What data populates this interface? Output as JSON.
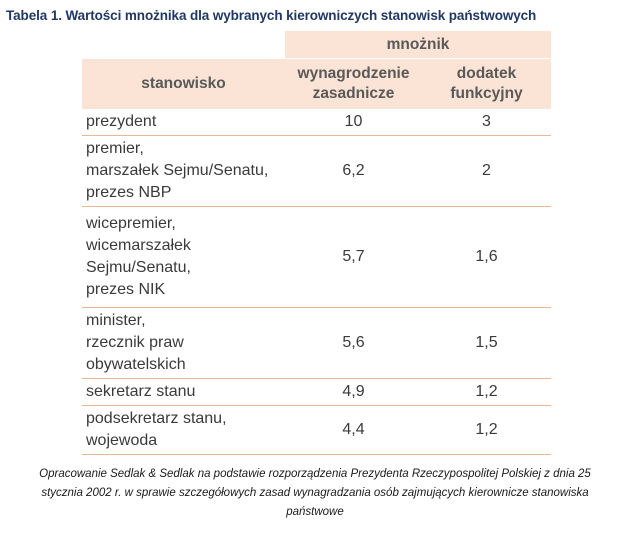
{
  "title": "Tabela 1. Wartości mnożnika dla wybranych kierowniczych stanowisk państwowych",
  "table": {
    "group_header": "mnożnik",
    "col_position": "stanowisko",
    "col_base": [
      "wynagrodzenie",
      "zasadnicze"
    ],
    "col_bonus": [
      "dodatek",
      "funkcyjny"
    ],
    "rows": [
      {
        "position": [
          "prezydent"
        ],
        "base": "10",
        "bonus": "3"
      },
      {
        "position": [
          "premier,",
          "marszałek Sejmu/Senatu,",
          "prezes NBP"
        ],
        "base": "6,2",
        "bonus": "2"
      },
      {
        "position": [
          "wicepremier,",
          "wicemarszałek",
          "Sejmu/Senatu,",
          "prezes NIK"
        ],
        "base": "5,7",
        "bonus": "1,6"
      },
      {
        "position": [
          "minister,",
          "rzecznik praw",
          "obywatelskich"
        ],
        "base": "5,6",
        "bonus": "1,5"
      },
      {
        "position": [
          "sekretarz stanu"
        ],
        "base": "4,9",
        "bonus": "1,2"
      },
      {
        "position": [
          "podsekretarz stanu,",
          "wojewoda"
        ],
        "base": "4,4",
        "bonus": "1,2"
      }
    ]
  },
  "caption": "Opracowanie Sedlak & Sedlak na podstawie rozporządzenia Prezydenta Rzeczypospolitej Polskiej z dnia 25 stycznia 2002 r. w sprawie szczegółowych zasad wynagradzania osób zajmujących kierownicze stanowiska państwowe"
}
